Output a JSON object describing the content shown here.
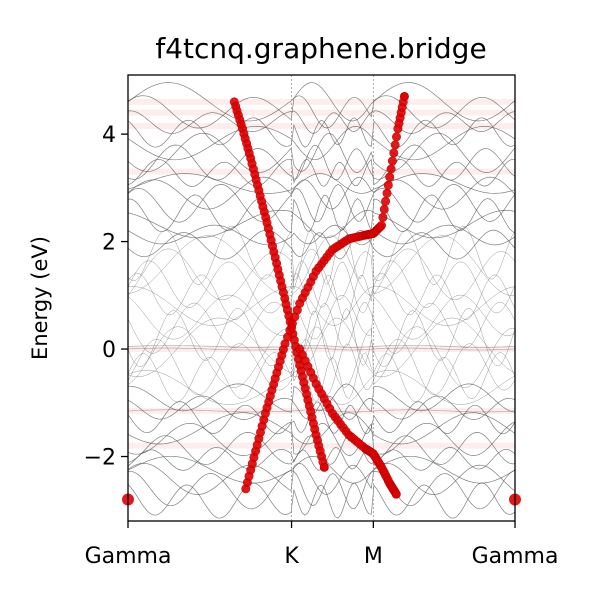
{
  "chart_data": {
    "type": "scatter",
    "title": "f4tcnq.graphene.bridge",
    "xlabel": "",
    "ylabel": "Energy (eV)",
    "ylim": [
      -3.2,
      5.1
    ],
    "yticks": [
      -2,
      0,
      2,
      4
    ],
    "ytick_labels": [
      "−2",
      "0",
      "2",
      "4"
    ],
    "kpath": {
      "labels": [
        "Gamma",
        "K",
        "M",
        "Gamma"
      ],
      "positions": [
        0.0,
        1.0,
        1.5,
        2.366
      ]
    },
    "grid": "vertical dotted lines at high-symmetry points",
    "band_color": "#555555",
    "weight_color": "#e00000",
    "flat_weight_levels": [
      4.6,
      4.4,
      4.15,
      3.3,
      0.0,
      -1.15,
      -1.8
    ],
    "series": [
      {
        "points": [
          {
            "x": 0.65,
            "y": 4.6
          },
          {
            "x": 0.7,
            "y": 4.1
          },
          {
            "x": 0.75,
            "y": 3.55
          },
          {
            "x": 0.8,
            "y": 2.95
          },
          {
            "x": 0.85,
            "y": 2.35
          },
          {
            "x": 0.9,
            "y": 1.7
          },
          {
            "x": 0.95,
            "y": 1.05
          },
          {
            "x": 1.0,
            "y": 0.4
          },
          {
            "x": 1.05,
            "y": -0.3
          },
          {
            "x": 1.1,
            "y": -0.95
          },
          {
            "x": 1.15,
            "y": -1.6
          },
          {
            "x": 1.2,
            "y": -2.2
          },
          {
            "x": 0.72,
            "y": -2.6
          },
          {
            "x": 0.78,
            "y": -1.9
          },
          {
            "x": 0.84,
            "y": -1.2
          },
          {
            "x": 0.9,
            "y": -0.55
          },
          {
            "x": 0.96,
            "y": 0.1
          },
          {
            "x": 1.05,
            "y": 0.85
          },
          {
            "x": 1.15,
            "y": 1.45
          },
          {
            "x": 1.25,
            "y": 1.85
          },
          {
            "x": 1.35,
            "y": 2.05
          },
          {
            "x": 1.45,
            "y": 2.12
          },
          {
            "x": 1.5,
            "y": 2.15
          },
          {
            "x": 1.55,
            "y": 2.3
          },
          {
            "x": 1.6,
            "y": 3.2
          },
          {
            "x": 1.65,
            "y": 4.1
          },
          {
            "x": 1.69,
            "y": 4.7
          },
          {
            "x": 1.05,
            "y": 0.0
          },
          {
            "x": 1.15,
            "y": -0.65
          },
          {
            "x": 1.25,
            "y": -1.2
          },
          {
            "x": 1.35,
            "y": -1.6
          },
          {
            "x": 1.45,
            "y": -1.85
          },
          {
            "x": 1.5,
            "y": -1.95
          },
          {
            "x": 1.55,
            "y": -2.2
          },
          {
            "x": 1.6,
            "y": -2.5
          },
          {
            "x": 1.64,
            "y": -2.7
          },
          {
            "x": 0.0,
            "y": -2.8
          },
          {
            "x": 2.366,
            "y": -2.8
          }
        ]
      }
    ]
  }
}
